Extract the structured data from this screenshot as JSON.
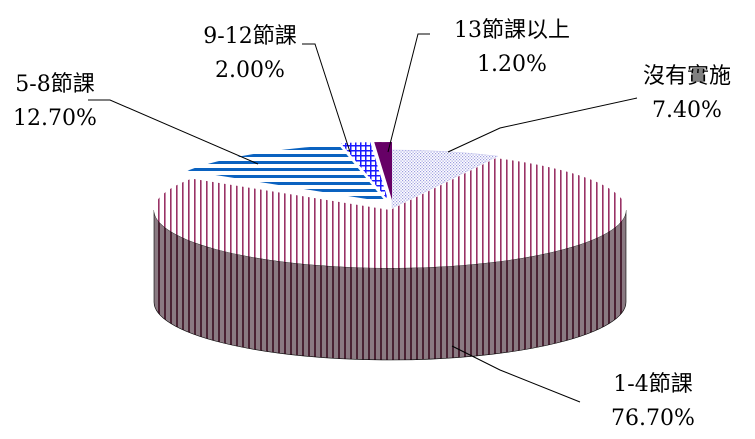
{
  "chart_data": {
    "type": "pie",
    "title": "",
    "style": "3d-exploded-tilted",
    "slices": [
      {
        "label": "沒有實施",
        "value": 7.4,
        "value_label": "7.40%",
        "color": "#c4c4ee",
        "pattern": "dots"
      },
      {
        "label": "1-4節課",
        "value": 76.7,
        "value_label": "76.70%",
        "color": "#993366",
        "pattern": "vertical-lines"
      },
      {
        "label": "5-8節課",
        "value": 12.7,
        "value_label": "12.70%",
        "color": "#0066cc",
        "pattern": "horizontal-lines"
      },
      {
        "label": "9-12節課",
        "value": 2.0,
        "value_label": "2.00%",
        "color": "#0000ff",
        "pattern": "grid"
      },
      {
        "label": "13節課以上",
        "value": 1.2,
        "value_label": "1.20%",
        "color": "#660066",
        "pattern": "solid"
      }
    ]
  }
}
